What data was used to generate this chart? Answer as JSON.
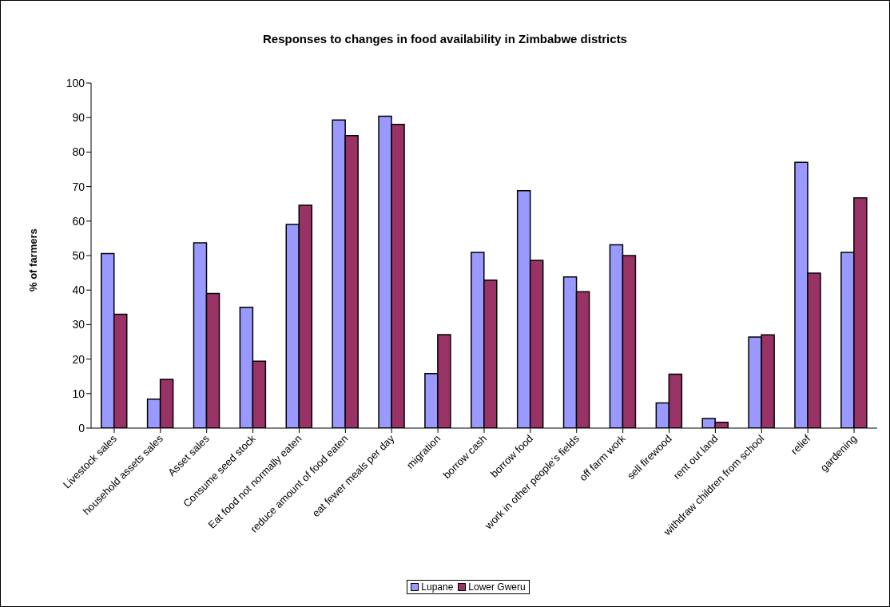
{
  "chart_data": {
    "type": "bar",
    "title": "Responses to changes in food availability in Zimbabwe districts",
    "ylabel": "% of farmers",
    "categories": [
      "Livestock sales",
      "household assets sales",
      "Asset sales",
      "Consume seed stock",
      "Eat food not normally eaten",
      "reduce amount of food eaten",
      "eat fewer meals per day",
      "migration",
      "borrow cash",
      "borrow food",
      "work in other people's fields",
      "off farm work",
      "sell firewood",
      "rent out land",
      "withdraw children from school",
      "relief",
      "gardening"
    ],
    "series": [
      {
        "name": "Lupane",
        "color": "#9999ff",
        "values": [
          50.6,
          8.4,
          53.7,
          35,
          59,
          89.3,
          90.4,
          15.8,
          50.9,
          68.8,
          43.8,
          53.1,
          7.3,
          2.8,
          26.4,
          77,
          50.9
        ]
      },
      {
        "name": "Lower Gweru",
        "color": "#993366",
        "values": [
          33,
          14.1,
          39,
          19.4,
          64.6,
          84.8,
          88,
          27.1,
          42.9,
          48.6,
          39.5,
          50,
          15.6,
          1.7,
          27,
          44.9,
          66.7
        ]
      }
    ],
    "ylim": [
      0,
      100
    ],
    "yticks": [
      0,
      10,
      20,
      30,
      40,
      50,
      60,
      70,
      80,
      90,
      100
    ],
    "grid": false,
    "legend": "bottom"
  }
}
